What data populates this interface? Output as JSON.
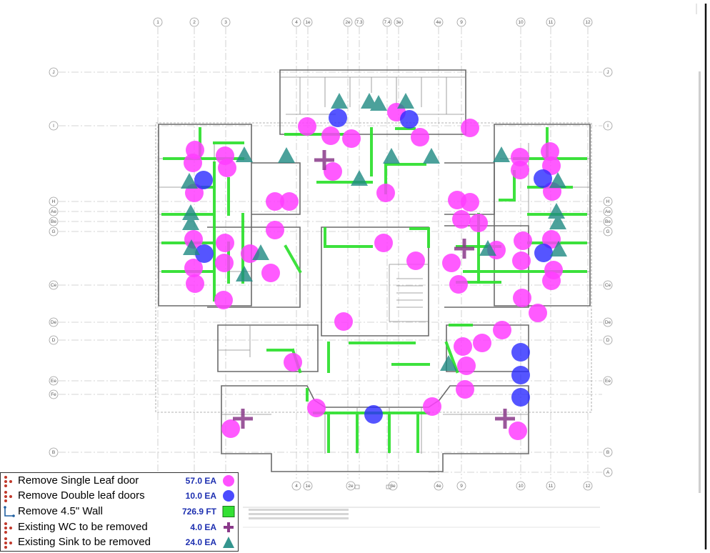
{
  "colors": {
    "single_leaf_door": "#ff3dff",
    "double_leaf_door": "#2b2bff",
    "wall": "#33e033",
    "wc": "#8a3a8a",
    "sink": "#1e8a82",
    "quantity_text": "#1d2fb0"
  },
  "grid": {
    "columns_top": [
      "1",
      "2",
      "3",
      "4",
      "1e",
      "2e",
      "7.3",
      "7.4",
      "3e",
      "4e",
      "9",
      "10",
      "11",
      "12"
    ],
    "columns_bottom": [
      "4",
      "1e",
      "2e",
      "3e",
      "4e",
      "9",
      "10",
      "11",
      "12"
    ],
    "rows_left": [
      "J",
      "I",
      "H",
      "Ae",
      "Be",
      "G",
      "Ce",
      "De",
      "D",
      "Ee",
      "Fe",
      "B"
    ],
    "rows_right": [
      "J",
      "I",
      "H",
      "Ae",
      "Be",
      "G",
      "Ce",
      "De",
      "D",
      "Ee",
      "B",
      "A"
    ]
  },
  "legend": {
    "items": [
      {
        "label": "Remove Single Leaf door",
        "quantity": "57.0 EA",
        "symbol": "magenta-circle-icon"
      },
      {
        "label": "Remove Double leaf doors",
        "quantity": "10.0 EA",
        "symbol": "blue-circle-icon"
      },
      {
        "label": "Remove 4.5\" Wall",
        "quantity": "726.9 FT",
        "symbol": "green-square-icon"
      },
      {
        "label": "Existing WC to be removed",
        "quantity": "4.0 EA",
        "symbol": "purple-cross-icon"
      },
      {
        "label": "Existing Sink to be removed",
        "quantity": "24.0 EA",
        "symbol": "teal-triangle-icon"
      }
    ]
  }
}
